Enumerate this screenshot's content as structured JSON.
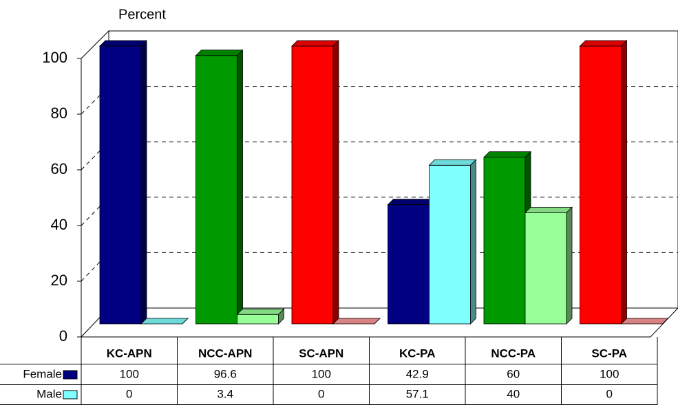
{
  "chart_data": {
    "type": "bar",
    "y_label": "Percent",
    "categories": [
      "KC-APN",
      "NCC-APN",
      "SC-APN",
      "KC-PA",
      "NCC-PA",
      "SC-PA"
    ],
    "series": [
      {
        "name": "Female",
        "color": "#000080",
        "colors": [
          "#000080",
          "#009900",
          "#ff0000",
          "#000080",
          "#009900",
          "#ff0000"
        ],
        "values": [
          100,
          96.6,
          100,
          42.9,
          60,
          100
        ]
      },
      {
        "name": "Male",
        "color": "#80ffff",
        "colors": [
          "#80ffff",
          "#99ff99",
          "#ff9999",
          "#80ffff",
          "#99ff99",
          "#ff9999"
        ],
        "values": [
          0,
          3.4,
          0,
          57.1,
          40,
          0
        ]
      }
    ],
    "ylim": [
      0,
      100
    ],
    "yticks": [
      0,
      20,
      40,
      60,
      80,
      100
    ],
    "grid": true,
    "data_table": true
  }
}
